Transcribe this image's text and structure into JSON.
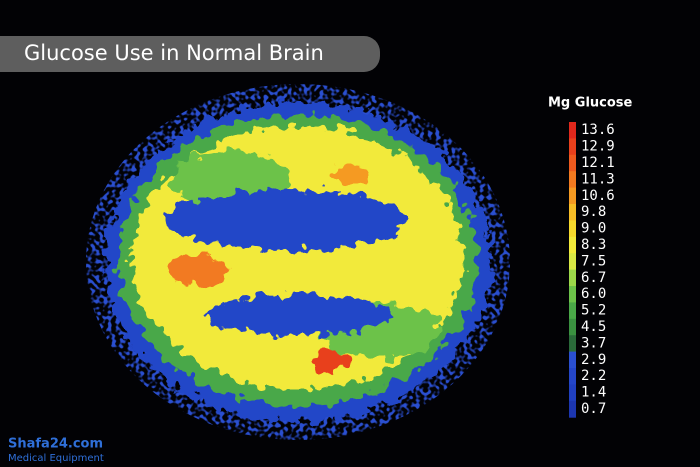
{
  "header": {
    "title": "Glucose Use in Normal Brain"
  },
  "legend": {
    "title": "Mg Glucose",
    "entries": [
      {
        "label": "13.6",
        "color": "#e0281c"
      },
      {
        "label": "12.9",
        "color": "#e8401c"
      },
      {
        "label": "12.1",
        "color": "#ee5a1e"
      },
      {
        "label": "11.3",
        "color": "#f27a20"
      },
      {
        "label": "10.6",
        "color": "#f59a22"
      },
      {
        "label": "9.8",
        "color": "#f7bd26"
      },
      {
        "label": "9.0",
        "color": "#f6d92c"
      },
      {
        "label": "8.3",
        "color": "#f2ea3a"
      },
      {
        "label": "7.5",
        "color": "#d8e845"
      },
      {
        "label": "6.7",
        "color": "#9cd84a"
      },
      {
        "label": "6.0",
        "color": "#6cc24a"
      },
      {
        "label": "5.2",
        "color": "#4aa848"
      },
      {
        "label": "4.5",
        "color": "#3a9040"
      },
      {
        "label": "3.7",
        "color": "#2a6a3a"
      },
      {
        "label": "2.9",
        "color": "#2a4fd0"
      },
      {
        "label": "2.2",
        "color": "#2446c8"
      },
      {
        "label": "1.4",
        "color": "#2040c0"
      },
      {
        "label": "0.7",
        "color": "#1c36b0"
      }
    ]
  },
  "watermark": {
    "site": "Shafa24.com",
    "tagline": "Medical Equipment"
  }
}
